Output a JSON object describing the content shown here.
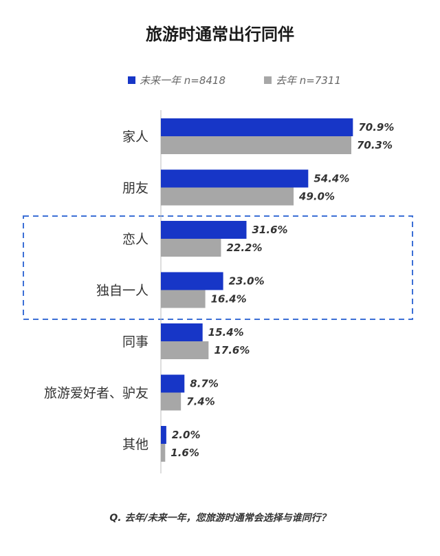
{
  "chart_data": {
    "type": "bar",
    "orientation": "horizontal",
    "title": "旅游时通常出行同伴",
    "categories": [
      "家人",
      "朋友",
      "恋人",
      "独自一人",
      "同事",
      "旅游爱好者、驴友",
      "其他"
    ],
    "series": [
      {
        "name": "未来一年 n=8418",
        "color": "#1736c7",
        "values": [
          70.9,
          54.4,
          31.6,
          23.0,
          15.4,
          8.7,
          2.0
        ],
        "labels": [
          "70.9%",
          "54.4%",
          "31.6%",
          "23.0%",
          "15.4%",
          "8.7%",
          "2.0%"
        ]
      },
      {
        "name": "去年 n=7311",
        "color": "#a7a7a7",
        "values": [
          70.3,
          49.0,
          22.2,
          16.4,
          17.6,
          7.4,
          1.6
        ],
        "labels": [
          "70.3%",
          "49.0%",
          "22.2%",
          "16.4%",
          "17.6%",
          "7.4%",
          "1.6%"
        ]
      }
    ],
    "xlim": [
      0,
      100
    ],
    "legend_position": "top",
    "highlight_categories": [
      "恋人",
      "独自一人"
    ],
    "highlight_color": "#3b6fd6",
    "grid": false
  },
  "question": "Q. 去年/未来一年，您旅游时通常会选择与谁同行？"
}
